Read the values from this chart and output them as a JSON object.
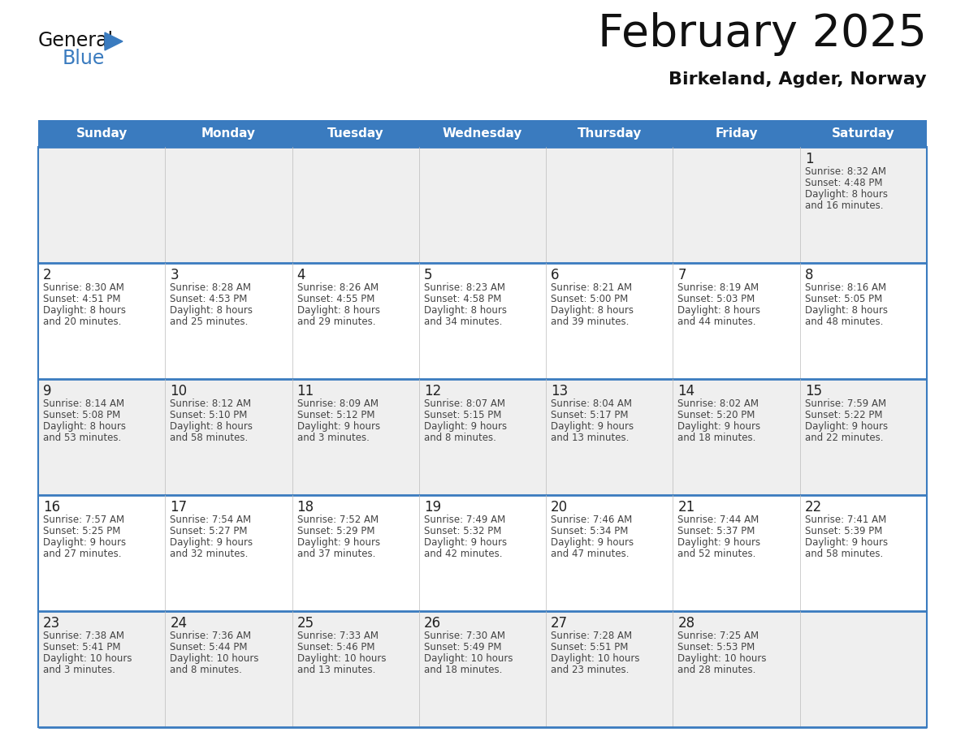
{
  "title": "February 2025",
  "subtitle": "Birkeland, Agder, Norway",
  "header_color": "#3a7bbf",
  "header_text_color": "#ffffff",
  "day_headers": [
    "Sunday",
    "Monday",
    "Tuesday",
    "Wednesday",
    "Thursday",
    "Friday",
    "Saturday"
  ],
  "separator_color": "#3a7bbf",
  "text_color": "#222222",
  "day_number_color": "#222222",
  "info_text_color": "#444444",
  "cell_bg_even": "#efefef",
  "cell_bg_odd": "#ffffff",
  "grid_line_color": "#bbbbbb",
  "logo_color_general": "#111111",
  "logo_color_blue": "#3a7bbf",
  "logo_triangle_color": "#3a7bbf",
  "calendar_data": [
    [
      {
        "day": "",
        "info": ""
      },
      {
        "day": "",
        "info": ""
      },
      {
        "day": "",
        "info": ""
      },
      {
        "day": "",
        "info": ""
      },
      {
        "day": "",
        "info": ""
      },
      {
        "day": "",
        "info": ""
      },
      {
        "day": "1",
        "info": "Sunrise: 8:32 AM\nSunset: 4:48 PM\nDaylight: 8 hours\nand 16 minutes."
      }
    ],
    [
      {
        "day": "2",
        "info": "Sunrise: 8:30 AM\nSunset: 4:51 PM\nDaylight: 8 hours\nand 20 minutes."
      },
      {
        "day": "3",
        "info": "Sunrise: 8:28 AM\nSunset: 4:53 PM\nDaylight: 8 hours\nand 25 minutes."
      },
      {
        "day": "4",
        "info": "Sunrise: 8:26 AM\nSunset: 4:55 PM\nDaylight: 8 hours\nand 29 minutes."
      },
      {
        "day": "5",
        "info": "Sunrise: 8:23 AM\nSunset: 4:58 PM\nDaylight: 8 hours\nand 34 minutes."
      },
      {
        "day": "6",
        "info": "Sunrise: 8:21 AM\nSunset: 5:00 PM\nDaylight: 8 hours\nand 39 minutes."
      },
      {
        "day": "7",
        "info": "Sunrise: 8:19 AM\nSunset: 5:03 PM\nDaylight: 8 hours\nand 44 minutes."
      },
      {
        "day": "8",
        "info": "Sunrise: 8:16 AM\nSunset: 5:05 PM\nDaylight: 8 hours\nand 48 minutes."
      }
    ],
    [
      {
        "day": "9",
        "info": "Sunrise: 8:14 AM\nSunset: 5:08 PM\nDaylight: 8 hours\nand 53 minutes."
      },
      {
        "day": "10",
        "info": "Sunrise: 8:12 AM\nSunset: 5:10 PM\nDaylight: 8 hours\nand 58 minutes."
      },
      {
        "day": "11",
        "info": "Sunrise: 8:09 AM\nSunset: 5:12 PM\nDaylight: 9 hours\nand 3 minutes."
      },
      {
        "day": "12",
        "info": "Sunrise: 8:07 AM\nSunset: 5:15 PM\nDaylight: 9 hours\nand 8 minutes."
      },
      {
        "day": "13",
        "info": "Sunrise: 8:04 AM\nSunset: 5:17 PM\nDaylight: 9 hours\nand 13 minutes."
      },
      {
        "day": "14",
        "info": "Sunrise: 8:02 AM\nSunset: 5:20 PM\nDaylight: 9 hours\nand 18 minutes."
      },
      {
        "day": "15",
        "info": "Sunrise: 7:59 AM\nSunset: 5:22 PM\nDaylight: 9 hours\nand 22 minutes."
      }
    ],
    [
      {
        "day": "16",
        "info": "Sunrise: 7:57 AM\nSunset: 5:25 PM\nDaylight: 9 hours\nand 27 minutes."
      },
      {
        "day": "17",
        "info": "Sunrise: 7:54 AM\nSunset: 5:27 PM\nDaylight: 9 hours\nand 32 minutes."
      },
      {
        "day": "18",
        "info": "Sunrise: 7:52 AM\nSunset: 5:29 PM\nDaylight: 9 hours\nand 37 minutes."
      },
      {
        "day": "19",
        "info": "Sunrise: 7:49 AM\nSunset: 5:32 PM\nDaylight: 9 hours\nand 42 minutes."
      },
      {
        "day": "20",
        "info": "Sunrise: 7:46 AM\nSunset: 5:34 PM\nDaylight: 9 hours\nand 47 minutes."
      },
      {
        "day": "21",
        "info": "Sunrise: 7:44 AM\nSunset: 5:37 PM\nDaylight: 9 hours\nand 52 minutes."
      },
      {
        "day": "22",
        "info": "Sunrise: 7:41 AM\nSunset: 5:39 PM\nDaylight: 9 hours\nand 58 minutes."
      }
    ],
    [
      {
        "day": "23",
        "info": "Sunrise: 7:38 AM\nSunset: 5:41 PM\nDaylight: 10 hours\nand 3 minutes."
      },
      {
        "day": "24",
        "info": "Sunrise: 7:36 AM\nSunset: 5:44 PM\nDaylight: 10 hours\nand 8 minutes."
      },
      {
        "day": "25",
        "info": "Sunrise: 7:33 AM\nSunset: 5:46 PM\nDaylight: 10 hours\nand 13 minutes."
      },
      {
        "day": "26",
        "info": "Sunrise: 7:30 AM\nSunset: 5:49 PM\nDaylight: 10 hours\nand 18 minutes."
      },
      {
        "day": "27",
        "info": "Sunrise: 7:28 AM\nSunset: 5:51 PM\nDaylight: 10 hours\nand 23 minutes."
      },
      {
        "day": "28",
        "info": "Sunrise: 7:25 AM\nSunset: 5:53 PM\nDaylight: 10 hours\nand 28 minutes."
      },
      {
        "day": "",
        "info": ""
      }
    ]
  ]
}
